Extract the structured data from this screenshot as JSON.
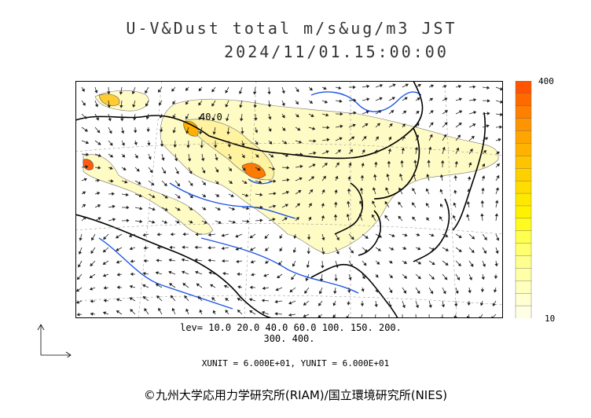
{
  "title_line1": "U-V&Dust total m/s&ug/m3 JST",
  "title_line2": "2024/11/01.15:00:00",
  "map_label": "40.0",
  "colorbar": {
    "max_label": "400",
    "min_label": "10",
    "colors": [
      "#ff5500",
      "#ff6a00",
      "#ff7f00",
      "#ff9400",
      "#ffa500",
      "#ffb300",
      "#ffc300",
      "#ffd000",
      "#ffdd00",
      "#ffe800",
      "#fff200",
      "#fffa20",
      "#ffff50",
      "#ffff70",
      "#ffff90",
      "#ffffa8",
      "#ffffbe",
      "#ffffd2",
      "#ffffe4"
    ]
  },
  "legend": {
    "lev_line1": "lev= 10.0 20.0 40.0 60.0 100. 150. 200.",
    "lev_line2": "300. 400.",
    "units": "XUNIT = 6.000E+01, YUNIT = 6.000E+01"
  },
  "credit": "©九州大学応用力学研究所(RIAM)/国立環境研究所(NIES)"
}
